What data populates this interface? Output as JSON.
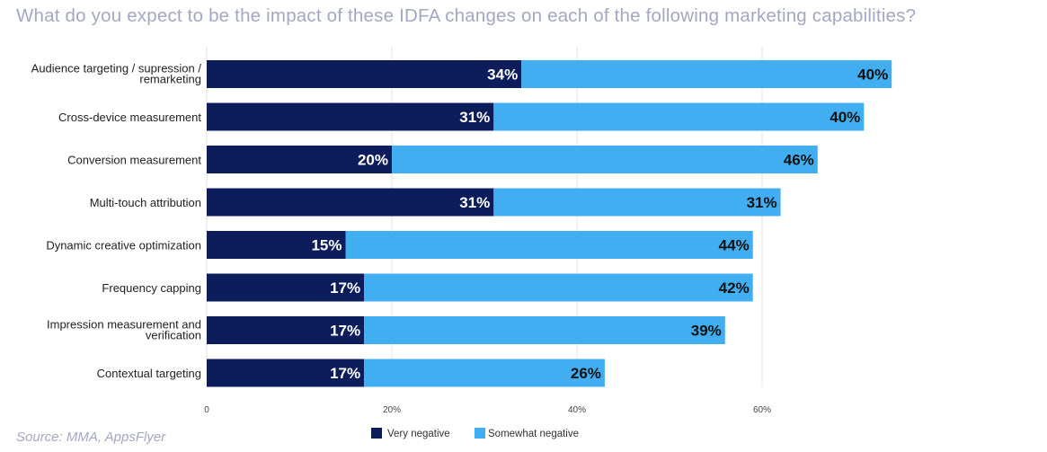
{
  "source": "Source: MMA, AppsFlyer",
  "chart_data": {
    "type": "bar",
    "orientation": "horizontal",
    "stacked": true,
    "title": "What do you expect to be the impact of these IDFA changes on each of the following marketing capabilities?",
    "categories": [
      [
        "Audience targeting / supression /",
        "remarketing"
      ],
      [
        "Cross-device measurement"
      ],
      [
        "Conversion measurement"
      ],
      [
        "Multi-touch attribution"
      ],
      [
        "Dynamic creative optimization"
      ],
      [
        "Frequency capping"
      ],
      [
        "Impression measurement and",
        "verification"
      ],
      [
        "Contextual targeting"
      ]
    ],
    "series": [
      {
        "name": "Very negative",
        "color": "#0d1d5b",
        "values": [
          34,
          31,
          20,
          31,
          15,
          17,
          17,
          17
        ],
        "labels": [
          "34%",
          "31%",
          "20%",
          "31%",
          "15%",
          "17%",
          "17%",
          "17%"
        ]
      },
      {
        "name": "Somewhat negative",
        "color": "#40aef0",
        "values": [
          40,
          40,
          46,
          31,
          44,
          42,
          39,
          26
        ],
        "labels": [
          "40%",
          "40%",
          "46%",
          "31%",
          "44%",
          "42%",
          "39%",
          "26%"
        ]
      }
    ],
    "xlim": [
      0,
      75
    ],
    "xticks": [
      0,
      20,
      40,
      60
    ],
    "xtick_labels": [
      "0",
      "20%",
      "40%",
      "60%"
    ],
    "grid": true,
    "legend_position": "bottom-center",
    "colors": {
      "gridline": "#e3e3e3",
      "label_dark": "#ffffff",
      "label_light": "#111111"
    }
  }
}
